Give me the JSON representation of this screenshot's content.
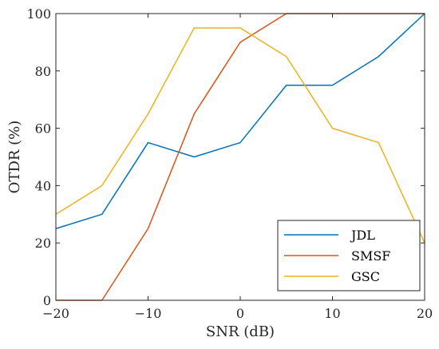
{
  "chart_data": {
    "type": "line",
    "xlabel": "SNR (dB)",
    "ylabel": "OTDR (%)",
    "x": [
      -20,
      -15,
      -10,
      -5,
      0,
      5,
      10,
      15,
      20
    ],
    "xlim": [
      -20,
      20
    ],
    "ylim": [
      0,
      100
    ],
    "xticks": [
      "−20",
      "−10",
      "0",
      "10",
      "20"
    ],
    "xtick_values": [
      -20,
      -10,
      0,
      10,
      20
    ],
    "yticks": [
      "0",
      "20",
      "40",
      "60",
      "80",
      "100"
    ],
    "ytick_values": [
      0,
      20,
      40,
      60,
      80,
      100
    ],
    "grid": false,
    "legend_position": "bottom-right",
    "series": [
      {
        "name": "JDL",
        "color": "#0072BD",
        "values": [
          25,
          30,
          55,
          50,
          55,
          75,
          75,
          85,
          100
        ]
      },
      {
        "name": "SMSF",
        "color": "#D95319",
        "values": [
          0,
          0,
          25,
          65,
          90,
          100,
          100,
          100,
          100
        ]
      },
      {
        "name": "GSC",
        "color": "#EDB120",
        "values": [
          30,
          40,
          65,
          95,
          95,
          85,
          60,
          55,
          20
        ]
      }
    ]
  }
}
